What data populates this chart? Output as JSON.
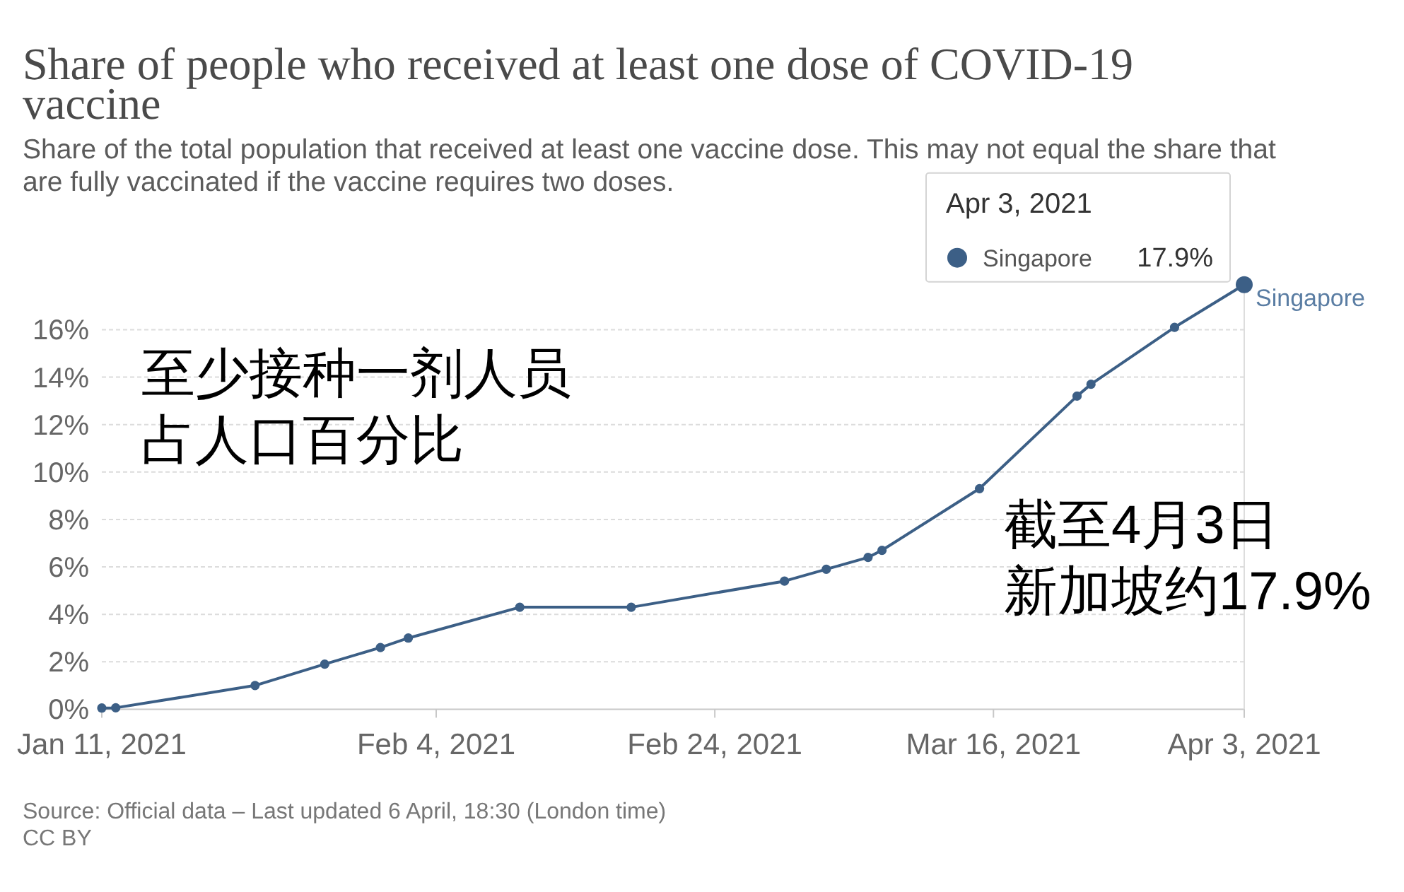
{
  "chart_data": {
    "type": "line",
    "title": "Share of people who received at least one dose of COVID-19 vaccine",
    "subtitle": "Share of the total population that received at least one vaccine dose. This may not equal the share that are fully vaccinated if the vaccine requires two doses.",
    "x": [
      "2021-01-11",
      "2021-01-12",
      "2021-01-22",
      "2021-01-27",
      "2021-01-31",
      "2021-02-02",
      "2021-02-10",
      "2021-02-18",
      "2021-03-01",
      "2021-03-04",
      "2021-03-07",
      "2021-03-08",
      "2021-03-15",
      "2021-03-22",
      "2021-03-23",
      "2021-03-29",
      "2021-04-03"
    ],
    "series": [
      {
        "name": "Singapore",
        "color": "#3c5f86",
        "values": [
          0.05,
          0.06,
          1.0,
          1.9,
          2.6,
          3.0,
          4.3,
          4.3,
          5.4,
          5.9,
          6.4,
          6.7,
          9.3,
          13.2,
          13.7,
          16.1,
          17.9
        ],
        "value_labels": [
          null,
          null,
          null,
          null,
          null,
          null,
          null,
          null,
          null,
          null,
          null,
          null,
          null,
          null,
          null,
          null,
          "17.9%"
        ]
      }
    ],
    "xlim": [
      "2021-01-11",
      "2021-04-03"
    ],
    "xticks": [
      {
        "value": "2021-01-11",
        "label": "Jan 11, 2021"
      },
      {
        "value": "2021-02-04",
        "label": "Feb 4, 2021"
      },
      {
        "value": "2021-02-24",
        "label": "Feb 24, 2021"
      },
      {
        "value": "2021-03-16",
        "label": "Mar 16, 2021"
      },
      {
        "value": "2021-04-03",
        "label": "Apr 3, 2021"
      }
    ],
    "ylim": [
      0,
      18
    ],
    "yticks": [
      {
        "value": 0,
        "label": "0%"
      },
      {
        "value": 2,
        "label": "2%"
      },
      {
        "value": 4,
        "label": "4%"
      },
      {
        "value": 6,
        "label": "6%"
      },
      {
        "value": 8,
        "label": "8%"
      },
      {
        "value": 10,
        "label": "10%"
      },
      {
        "value": 12,
        "label": "12%"
      },
      {
        "value": 14,
        "label": "14%"
      },
      {
        "value": 16,
        "label": "16%"
      }
    ],
    "grid": "y",
    "marker": "circle",
    "line_style": "solid",
    "annotations": [
      "Apr 3, 2021",
      "至少接种一剂人员",
      "占人口百分比",
      "截至4月3日",
      "新加坡约17.9%",
      "Source: Official data – Last updated 6 April, 18:30 (London time)",
      "CC BY"
    ]
  }
}
